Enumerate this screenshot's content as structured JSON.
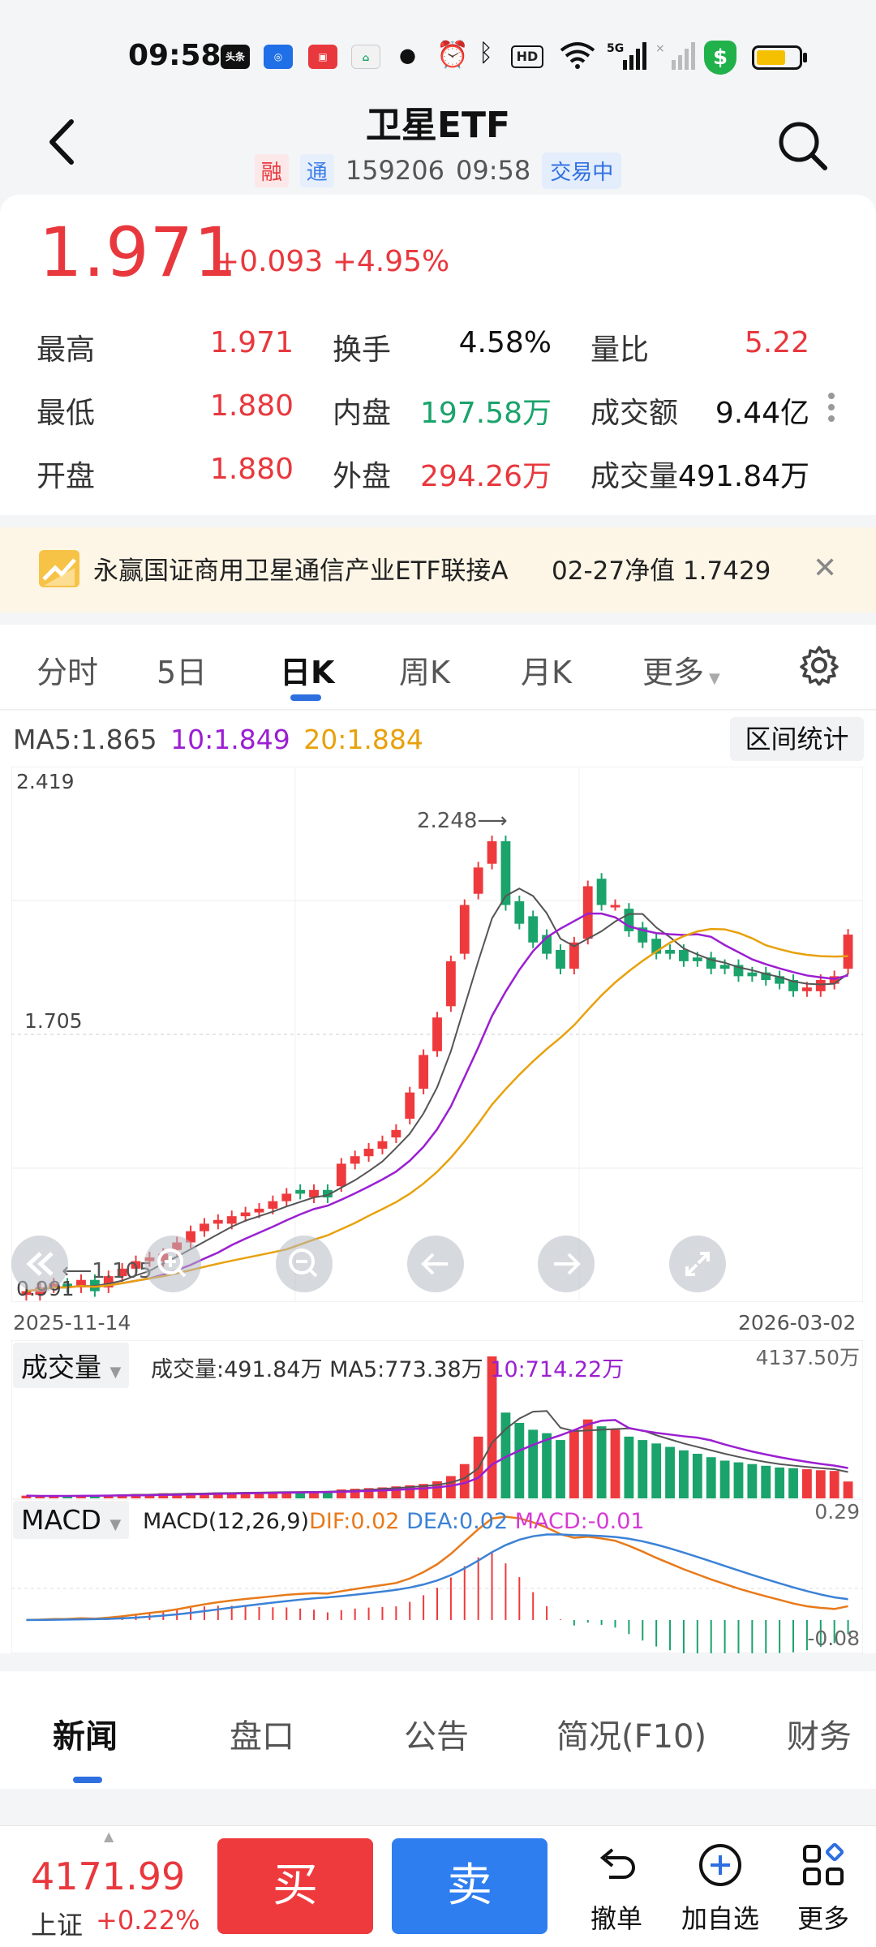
{
  "status_bar": {
    "time": "09:58",
    "network": "5G"
  },
  "header": {
    "title": "卫星ETF",
    "tag_margin": "融",
    "tag_connect": "通",
    "code": "159206",
    "time": "09:58",
    "status": "交易中"
  },
  "quote": {
    "price": "1.971",
    "change": "+0.093",
    "change_pct": "+4.95%",
    "stats": [
      [
        {
          "label": "最高",
          "value": "1.971",
          "color": "red"
        },
        {
          "label": "换手",
          "value": "4.58%",
          "color": "black"
        },
        {
          "label": "量比",
          "value": "5.22",
          "color": "red"
        }
      ],
      [
        {
          "label": "最低",
          "value": "1.880",
          "color": "red"
        },
        {
          "label": "内盘",
          "value": "197.58万",
          "color": "green"
        },
        {
          "label": "成交额",
          "value": "9.44亿",
          "color": "black"
        }
      ],
      [
        {
          "label": "开盘",
          "value": "1.880",
          "color": "red"
        },
        {
          "label": "外盘",
          "value": "294.26万",
          "color": "red"
        },
        {
          "label": "成交量",
          "value": "491.84万",
          "color": "black"
        }
      ]
    ]
  },
  "banner": {
    "text": "永赢国证商用卫星通信产业ETF联接A",
    "nav": "02-27净值 1.7429"
  },
  "tabs": [
    "分时",
    "5日",
    "日K",
    "周K",
    "月K",
    "更多"
  ],
  "active_tab": "日K",
  "kline": {
    "ma5": "MA5:1.865",
    "ma10": "10:1.849",
    "ma20": "20:1.884",
    "range_button": "区间统计",
    "y_top": "2.419",
    "y_mid": "1.705",
    "y_bottom": "0.991",
    "high_mark": "2.248⟶",
    "low_mark": "⟵1.105",
    "date_start": "2025-11-14",
    "date_end": "2026-03-02"
  },
  "volume": {
    "tag": "成交量",
    "value": "成交量:491.84万",
    "ma5": "MA5:773.38万",
    "ma10": "10:714.22万",
    "max": "4137.50万"
  },
  "macd": {
    "tag": "MACD",
    "params": "MACD(12,26,9)",
    "dif": "DIF:0.02",
    "dea": "DEA:0.02",
    "macd": "MACD:-0.01",
    "top": "0.29",
    "bottom": "-0.08"
  },
  "news_tabs": [
    "新闻",
    "盘口",
    "公告",
    "简况(F10)",
    "财务"
  ],
  "bottom": {
    "index_value": "4171.99",
    "index_name": "上证",
    "index_change": "+0.22%",
    "buy": "买",
    "sell": "卖",
    "cancel": "撤单",
    "add_watch": "加自选",
    "more": "更多"
  },
  "chart_data": {
    "type": "candlestick",
    "ylim": [
      0.991,
      2.419
    ],
    "x_range": [
      "2025-11-14",
      "2026-03-02"
    ],
    "closes": [
      1.02,
      1.03,
      1.04,
      1.03,
      1.05,
      1.02,
      1.06,
      1.08,
      1.1,
      1.11,
      1.12,
      1.15,
      1.18,
      1.2,
      1.21,
      1.22,
      1.23,
      1.24,
      1.26,
      1.28,
      1.28,
      1.29,
      1.27,
      1.36,
      1.38,
      1.4,
      1.42,
      1.45,
      1.55,
      1.65,
      1.75,
      1.9,
      2.05,
      2.15,
      2.22,
      2.05,
      2.0,
      1.95,
      1.92,
      1.88,
      1.95,
      2.1,
      2.05,
      2.05,
      1.98,
      1.95,
      1.92,
      1.92,
      1.9,
      1.9,
      1.88,
      1.88,
      1.86,
      1.86,
      1.85,
      1.84,
      1.82,
      1.83,
      1.85,
      1.86,
      1.971
    ],
    "opens": [
      1.01,
      1.01,
      1.03,
      1.04,
      1.03,
      1.05,
      1.03,
      1.06,
      1.08,
      1.1,
      1.1,
      1.13,
      1.15,
      1.18,
      1.2,
      1.2,
      1.22,
      1.23,
      1.24,
      1.26,
      1.29,
      1.27,
      1.29,
      1.3,
      1.36,
      1.38,
      1.4,
      1.43,
      1.48,
      1.56,
      1.66,
      1.78,
      1.92,
      2.08,
      2.16,
      2.22,
      2.06,
      2.02,
      1.97,
      1.93,
      1.88,
      1.96,
      2.12,
      2.05,
      2.04,
      1.99,
      1.96,
      1.93,
      1.93,
      1.91,
      1.91,
      1.89,
      1.89,
      1.87,
      1.87,
      1.86,
      1.85,
      1.82,
      1.82,
      1.84,
      1.88
    ],
    "volumes": [
      80,
      60,
      75,
      70,
      90,
      85,
      100,
      120,
      130,
      110,
      150,
      140,
      160,
      155,
      170,
      165,
      180,
      175,
      190,
      200,
      185,
      195,
      210,
      260,
      280,
      300,
      320,
      350,
      380,
      420,
      500,
      650,
      1000,
      1800,
      4137,
      2500,
      2200,
      2000,
      1900,
      1700,
      2000,
      2300,
      2100,
      2000,
      1800,
      1700,
      1600,
      1500,
      1400,
      1300,
      1200,
      1100,
      1050,
      1000,
      950,
      900,
      880,
      850,
      820,
      800,
      491.84
    ]
  }
}
